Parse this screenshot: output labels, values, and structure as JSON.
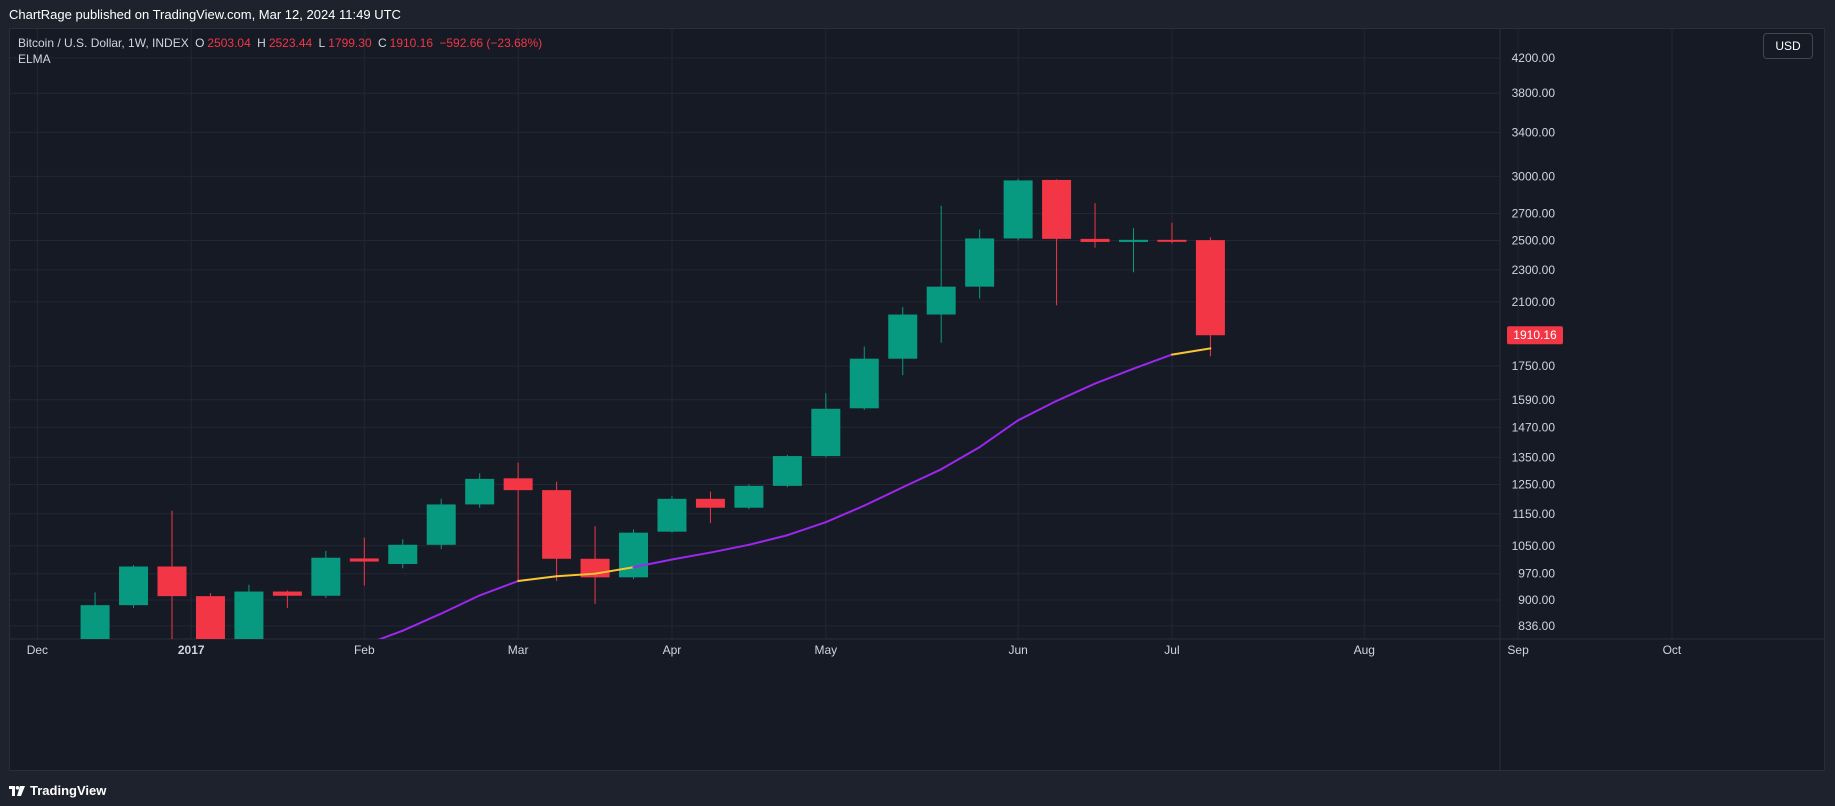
{
  "header": {
    "publish_text": "ChartRage published on TradingView.com, Mar 12, 2024 11:49 UTC"
  },
  "legend": {
    "symbol": "Bitcoin / U.S. Dollar, 1W, INDEX",
    "open_label": "O",
    "open": "2503.04",
    "high_label": "H",
    "high": "2523.44",
    "low_label": "L",
    "low": "1799.30",
    "close_label": "C",
    "close": "1910.16",
    "change": "−592.66 (−23.68%)",
    "indicator": "ELMA"
  },
  "currency_button": "USD",
  "last_price_badge": "1910.16",
  "footer": {
    "logo_text": "TradingView"
  },
  "colors": {
    "up": "#089981",
    "down": "#f23645",
    "elma_line": "#9c27ef",
    "elma_highlight": "#f7c631",
    "grid": "#232733",
    "axis_text": "#d1d4dc"
  },
  "chart_data": {
    "type": "candlestick",
    "title": "Bitcoin / U.S. Dollar, 1W, INDEX",
    "y_scale": "log",
    "ylim": [
      790,
      4400
    ],
    "y_ticks": [
      836,
      900,
      970,
      1050,
      1150,
      1250,
      1350,
      1470,
      1590,
      1750,
      1910.16,
      2100,
      2300,
      2500,
      2700,
      3000,
      3400,
      3800,
      4200
    ],
    "y_tick_labels": [
      "836.00",
      "900.00",
      "970.00",
      "1050.00",
      "1150.00",
      "1250.00",
      "1350.00",
      "1470.00",
      "1590.00",
      "1750.00",
      "1910.16",
      "2100.00",
      "2300.00",
      "2500.00",
      "2700.00",
      "3000.00",
      "3400.00",
      "3800.00",
      "4200.00"
    ],
    "x_ticks": [
      {
        "label": "Dec",
        "week": -3.5
      },
      {
        "label": "2017",
        "week": 0.5
      },
      {
        "label": "Feb",
        "week": 5.0
      },
      {
        "label": "Mar",
        "week": 9.0
      },
      {
        "label": "Apr",
        "week": 13.0
      },
      {
        "label": "May",
        "week": 17.0
      },
      {
        "label": "Jun",
        "week": 22.0
      },
      {
        "label": "Jul",
        "week": 26.0
      },
      {
        "label": "Aug",
        "week": 31.0
      },
      {
        "label": "Sep",
        "week": 35.0
      },
      {
        "label": "Oct",
        "week": 39.0
      }
    ],
    "candles": [
      {
        "week": -2,
        "o": 760,
        "h": 920,
        "l": 750,
        "c": 887
      },
      {
        "week": -1,
        "o": 887,
        "h": 994,
        "l": 880,
        "c": 990
      },
      {
        "week": 0,
        "o": 990,
        "h": 1160,
        "l": 790,
        "c": 910
      },
      {
        "week": 1,
        "o": 910,
        "h": 918,
        "l": 790,
        "c": 802
      },
      {
        "week": 2,
        "o": 802,
        "h": 940,
        "l": 790,
        "c": 922
      },
      {
        "week": 3,
        "o": 922,
        "h": 925,
        "l": 880,
        "c": 911
      },
      {
        "week": 4,
        "o": 911,
        "h": 1035,
        "l": 905,
        "c": 1015
      },
      {
        "week": 5,
        "o": 1013,
        "h": 1075,
        "l": 938,
        "c": 1004
      },
      {
        "week": 6,
        "o": 997,
        "h": 1070,
        "l": 985,
        "c": 1053
      },
      {
        "week": 7,
        "o": 1053,
        "h": 1200,
        "l": 1040,
        "c": 1181
      },
      {
        "week": 8,
        "o": 1181,
        "h": 1290,
        "l": 1170,
        "c": 1270
      },
      {
        "week": 9,
        "o": 1272,
        "h": 1330,
        "l": 950,
        "c": 1230
      },
      {
        "week": 10,
        "o": 1230,
        "h": 1260,
        "l": 950,
        "c": 1012
      },
      {
        "week": 11,
        "o": 1012,
        "h": 1110,
        "l": 890,
        "c": 960
      },
      {
        "week": 12,
        "o": 960,
        "h": 1100,
        "l": 955,
        "c": 1090
      },
      {
        "week": 13,
        "o": 1093,
        "h": 1210,
        "l": 1090,
        "c": 1200
      },
      {
        "week": 14,
        "o": 1200,
        "h": 1225,
        "l": 1120,
        "c": 1170
      },
      {
        "week": 15,
        "o": 1170,
        "h": 1250,
        "l": 1165,
        "c": 1245
      },
      {
        "week": 16,
        "o": 1245,
        "h": 1360,
        "l": 1240,
        "c": 1355
      },
      {
        "week": 17,
        "o": 1355,
        "h": 1620,
        "l": 1350,
        "c": 1550
      },
      {
        "week": 18,
        "o": 1552,
        "h": 1850,
        "l": 1545,
        "c": 1787
      },
      {
        "week": 19,
        "o": 1787,
        "h": 2070,
        "l": 1705,
        "c": 2026
      },
      {
        "week": 20,
        "o": 2026,
        "h": 2760,
        "l": 1870,
        "c": 2193
      },
      {
        "week": 21,
        "o": 2193,
        "h": 2580,
        "l": 2120,
        "c": 2515
      },
      {
        "week": 22,
        "o": 2515,
        "h": 2980,
        "l": 2500,
        "c": 2966
      },
      {
        "week": 23,
        "o": 2970,
        "h": 2975,
        "l": 2080,
        "c": 2512
      },
      {
        "week": 24,
        "o": 2512,
        "h": 2780,
        "l": 2450,
        "c": 2490
      },
      {
        "week": 25,
        "o": 2490,
        "h": 2590,
        "l": 2285,
        "c": 2505
      },
      {
        "week": 26,
        "o": 2505,
        "h": 2630,
        "l": 2480,
        "c": 2500
      },
      {
        "week": 27,
        "o": 2503.04,
        "h": 2523.44,
        "l": 1799.3,
        "c": 1910.16
      }
    ],
    "elma": [
      {
        "week": 5,
        "v": 792
      },
      {
        "week": 6,
        "v": 825
      },
      {
        "week": 7,
        "v": 866
      },
      {
        "week": 8,
        "v": 912
      },
      {
        "week": 9,
        "v": 950
      },
      {
        "week": 10,
        "v": 963
      },
      {
        "week": 11,
        "v": 970
      },
      {
        "week": 12,
        "v": 988
      },
      {
        "week": 13,
        "v": 1010
      },
      {
        "week": 14,
        "v": 1030
      },
      {
        "week": 15,
        "v": 1053
      },
      {
        "week": 16,
        "v": 1082
      },
      {
        "week": 17,
        "v": 1123
      },
      {
        "week": 18,
        "v": 1177
      },
      {
        "week": 19,
        "v": 1240
      },
      {
        "week": 20,
        "v": 1305
      },
      {
        "week": 21,
        "v": 1390
      },
      {
        "week": 22,
        "v": 1500
      },
      {
        "week": 23,
        "v": 1585
      },
      {
        "week": 24,
        "v": 1665
      },
      {
        "week": 25,
        "v": 1737
      },
      {
        "week": 26,
        "v": 1808
      },
      {
        "week": 27,
        "v": 1840
      }
    ],
    "elma_highlight_ranges": [
      [
        9,
        12
      ],
      [
        26,
        27
      ]
    ]
  }
}
